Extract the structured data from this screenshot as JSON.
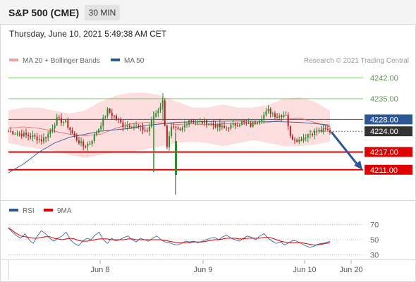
{
  "header": {
    "instrument": "S&P 500 (CME)",
    "timeframe": "30 MIN"
  },
  "datetime": "Thursday, June 10, 2021 5:49:38 AM CET",
  "legend_main": [
    {
      "label": "MA 20 + Bollinger Bands",
      "color": "#f08080"
    },
    {
      "label": "MA 50",
      "color": "#2b5797"
    }
  ],
  "credit": "Research © 2021 Trading Central",
  "legend_rsi": [
    {
      "label": "RSI",
      "color": "#2b5797"
    },
    {
      "label": "9MA",
      "color": "#dd0000"
    }
  ],
  "colors": {
    "up": "#2e8b2e",
    "down": "#b22222",
    "resistance": "#7cc06c",
    "support": "#e00000",
    "pivot": "#2b5797",
    "current": "#333333",
    "arrow": "#2b5797"
  },
  "chart_data": [
    {
      "type": "candlestick",
      "ylim": [
        4205,
        4245
      ],
      "x_tick_labels": [
        "Jun 8",
        "Jun 9",
        "Jun 10",
        "Jun 20"
      ],
      "levels": [
        {
          "value": 4242.0,
          "label": "4242.00",
          "kind": "resistance"
        },
        {
          "value": 4235.0,
          "label": "4235.00",
          "kind": "resistance"
        },
        {
          "value": 4228.0,
          "label": "4228.00",
          "kind": "pivot"
        },
        {
          "value": 4224.0,
          "label": "4224.00",
          "kind": "current"
        },
        {
          "value": 4217.0,
          "label": "4217.00",
          "kind": "support"
        },
        {
          "value": 4211.0,
          "label": "4211.00",
          "kind": "support"
        }
      ],
      "close_anchors": [
        [
          0,
          4224
        ],
        [
          6,
          4223
        ],
        [
          12,
          4222
        ],
        [
          15,
          4221
        ],
        [
          18,
          4223
        ],
        [
          22,
          4228
        ],
        [
          26,
          4227
        ],
        [
          30,
          4222
        ],
        [
          34,
          4219
        ],
        [
          37,
          4220
        ],
        [
          41,
          4225
        ],
        [
          45,
          4231
        ],
        [
          48,
          4229
        ],
        [
          52,
          4226
        ],
        [
          56,
          4226
        ],
        [
          60,
          4225
        ],
        [
          63,
          4224
        ],
        [
          66,
          4229
        ],
        [
          70,
          4234
        ],
        [
          72,
          4219
        ],
        [
          74,
          4225
        ],
        [
          78,
          4224
        ],
        [
          82,
          4228
        ],
        [
          86,
          4227
        ],
        [
          90,
          4227
        ],
        [
          94,
          4226
        ],
        [
          98,
          4225
        ],
        [
          102,
          4226
        ],
        [
          106,
          4227
        ],
        [
          110,
          4226
        ],
        [
          114,
          4228
        ],
        [
          118,
          4231
        ],
        [
          122,
          4229
        ],
        [
          126,
          4230
        ],
        [
          128,
          4222
        ],
        [
          132,
          4221
        ],
        [
          136,
          4223
        ],
        [
          140,
          4224
        ],
        [
          144,
          4224.5
        ],
        [
          146,
          4224
        ]
      ],
      "ma50": [
        4210,
        4213,
        4217,
        4220,
        4222,
        4223,
        4224,
        4224.5,
        4225,
        4226,
        4226.5,
        4227,
        4227.2,
        4227.3,
        4227.4,
        4227.5,
        4227.4,
        4227.3,
        4227.2,
        4227.0,
        4226.6,
        4226.1
      ],
      "ma20": [
        4225,
        4225.5,
        4225,
        4224,
        4223,
        4222.5,
        4223,
        4225,
        4226.5,
        4227,
        4226.8,
        4226.3,
        4226.5,
        4226.2,
        4226.5,
        4226.7,
        4226.8,
        4227,
        4228,
        4228.5,
        4227,
        4225.5
      ],
      "bb_upper": [
        4231,
        4232,
        4232,
        4231,
        4230,
        4231,
        4234,
        4236,
        4237,
        4237,
        4236,
        4234,
        4232,
        4232,
        4233,
        4232,
        4232,
        4233,
        4235,
        4235.5,
        4234,
        4231
      ],
      "bb_lower": [
        4220,
        4219,
        4218,
        4217.5,
        4216,
        4215,
        4216,
        4217,
        4217,
        4218,
        4219,
        4220,
        4220.5,
        4220,
        4219,
        4220,
        4221,
        4220,
        4219,
        4219,
        4219.5,
        4220.5
      ],
      "forecast": {
        "from": 4224,
        "to": 4211
      }
    },
    {
      "type": "line",
      "name": "RSI",
      "ylim": [
        20,
        80
      ],
      "yticks": [
        70,
        50,
        30
      ],
      "series": [
        {
          "name": "RSI",
          "values": [
            65,
            60,
            55,
            52,
            58,
            50,
            45,
            55,
            62,
            58,
            52,
            48,
            52,
            55,
            60,
            50,
            45,
            42,
            48,
            52,
            50,
            56,
            60,
            50,
            45,
            52,
            48,
            50,
            53,
            55,
            50,
            47,
            52,
            50,
            48,
            52,
            55,
            50,
            47,
            46,
            44,
            43,
            45,
            48,
            47,
            48,
            46,
            48,
            50,
            52,
            53,
            50,
            54,
            56,
            52,
            50,
            48,
            52,
            55,
            53,
            50,
            55,
            58,
            52,
            48,
            45,
            47,
            43,
            46,
            49,
            48,
            45,
            42,
            40,
            41,
            44,
            45,
            46,
            48
          ]
        },
        {
          "name": "9MA",
          "values": [
            66,
            62,
            58,
            55,
            54,
            53,
            52,
            52,
            53,
            54,
            54,
            52,
            51,
            50,
            51,
            52,
            51,
            49,
            48,
            48,
            49,
            50,
            51,
            51,
            51,
            50,
            50,
            50,
            50,
            51,
            51,
            50,
            50,
            50,
            50,
            50,
            50,
            50,
            49,
            48,
            47,
            46,
            46,
            46,
            46,
            47,
            47,
            47,
            48,
            49,
            50,
            50,
            51,
            52,
            52,
            52,
            51,
            51,
            52,
            52,
            52,
            52,
            53,
            53,
            52,
            50,
            48,
            47,
            46,
            46,
            46,
            46,
            45,
            44,
            43,
            43,
            44,
            45,
            46
          ]
        }
      ]
    }
  ]
}
